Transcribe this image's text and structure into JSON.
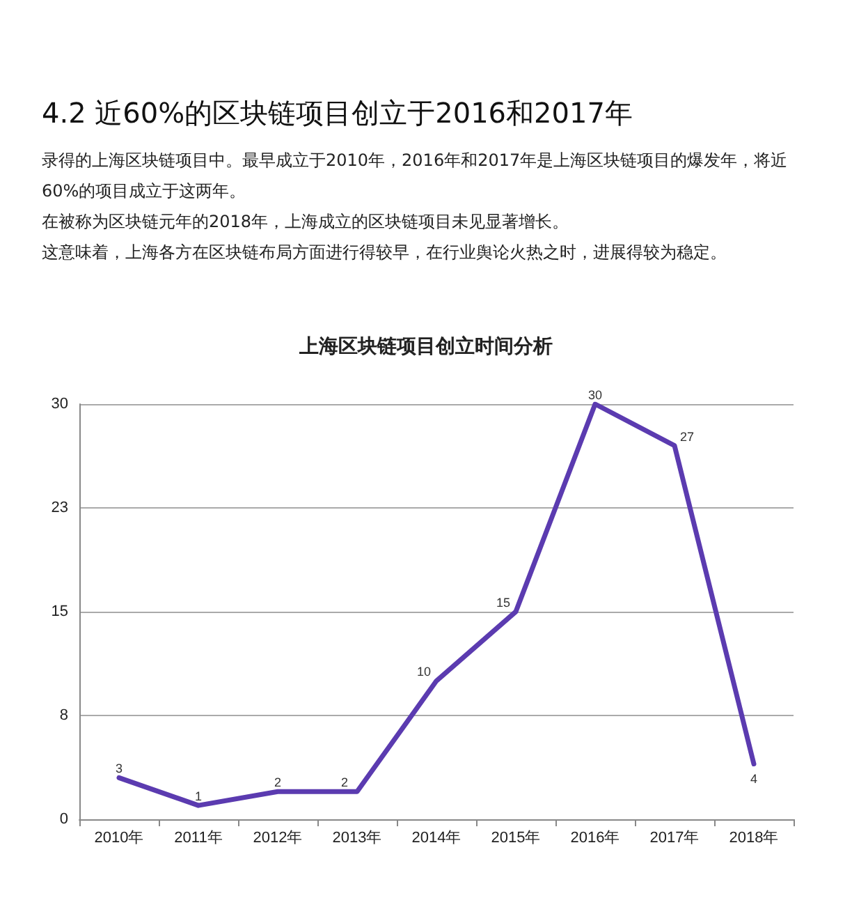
{
  "chart_data": {
    "type": "line",
    "subtitle": "4.2 近60%的区块链项目创立于2016和2017年",
    "annotations": [
      "录得的上海区块链项目中。最早成立于2010年，2016年和2017年是上海区块链项目的爆发年，将近60%的项目成立于这两年。",
      "在被称为区块链元年的2018年，上海成立的区块链项目未见显著增长。",
      "这意味着，上海各方在区块链布局方面进行得较早，在行业舆论火热之时，进展得较为稳定。"
    ],
    "title": "上海区块链项目创立时间分析",
    "categories": [
      "2010年",
      "2011年",
      "2012年",
      "2013年",
      "2014年",
      "2015年",
      "2016年",
      "2017年",
      "2018年"
    ],
    "series": [
      {
        "color": "#5b3bb0",
        "values": [
          3,
          1,
          2,
          2,
          10,
          15,
          30,
          27,
          4
        ]
      }
    ],
    "ylim": [
      0,
      30
    ],
    "yticks": [
      0,
      {
        "value": 7.5,
        "label": "8"
      },
      15,
      {
        "value": 22.5,
        "label": "23"
      },
      30
    ],
    "grid": "y",
    "data_labels": true,
    "marker": "none",
    "line_style": "solid"
  }
}
